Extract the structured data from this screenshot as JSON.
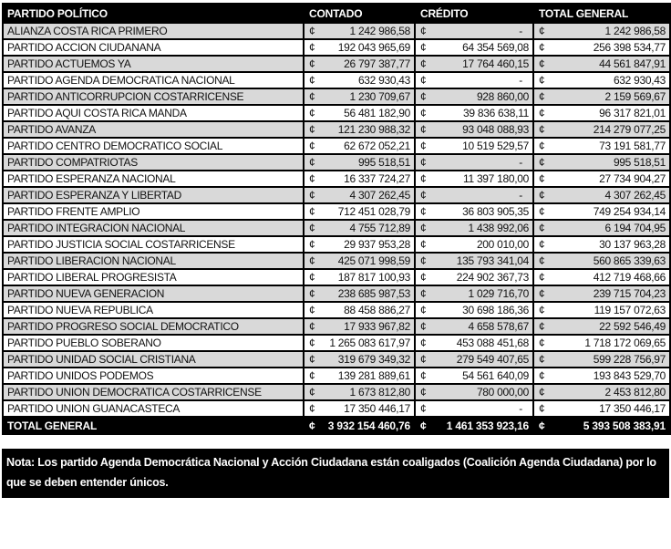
{
  "table": {
    "currency_symbol": "¢",
    "headers": [
      "PARTIDO POLÍTICO",
      "CONTADO",
      "CRÉDITO",
      "TOTAL GENERAL"
    ],
    "rows": [
      {
        "party": "ALIANZA COSTA RICA PRIMERO",
        "contado": "1 242 986,58",
        "credito": "-",
        "total": "1 242 986,58"
      },
      {
        "party": "PARTIDO ACCION CIUDANANA",
        "contado": "192 043 965,69",
        "credito": "64 354 569,08",
        "total": "256 398 534,77"
      },
      {
        "party": "PARTIDO ACTUEMOS YA",
        "contado": "26 797 387,77",
        "credito": "17 764 460,15",
        "total": "44 561 847,91"
      },
      {
        "party": "PARTIDO AGENDA DEMOCRATICA NACIONAL",
        "contado": "632 930,43",
        "credito": "-",
        "total": "632 930,43"
      },
      {
        "party": "PARTIDO ANTICORRUPCION COSTARRICENSE",
        "contado": "1 230 709,67",
        "credito": "928 860,00",
        "total": "2 159 569,67"
      },
      {
        "party": "PARTIDO AQUI COSTA RICA MANDA",
        "contado": "56 481 182,90",
        "credito": "39 836 638,11",
        "total": "96 317 821,01"
      },
      {
        "party": "PARTIDO AVANZA",
        "contado": "121 230 988,32",
        "credito": "93 048 088,93",
        "total": "214 279 077,25"
      },
      {
        "party": "PARTIDO CENTRO DEMOCRATICO SOCIAL",
        "contado": "62 672 052,21",
        "credito": "10 519 529,57",
        "total": "73 191 581,77"
      },
      {
        "party": "PARTIDO COMPATRIOTAS",
        "contado": "995 518,51",
        "credito": "-",
        "total": "995 518,51"
      },
      {
        "party": "PARTIDO ESPERANZA NACIONAL",
        "contado": "16 337 724,27",
        "credito": "11 397 180,00",
        "total": "27 734 904,27"
      },
      {
        "party": "PARTIDO ESPERANZA Y LIBERTAD",
        "contado": "4 307 262,45",
        "credito": "-",
        "total": "4 307 262,45"
      },
      {
        "party": "PARTIDO FRENTE AMPLIO",
        "contado": "712 451 028,79",
        "credito": "36 803 905,35",
        "total": "749 254 934,14"
      },
      {
        "party": "PARTIDO INTEGRACION NACIONAL",
        "contado": "4 755 712,89",
        "credito": "1 438 992,06",
        "total": "6 194 704,95"
      },
      {
        "party": "PARTIDO JUSTICIA SOCIAL COSTARRICENSE",
        "contado": "29 937 953,28",
        "credito": "200 010,00",
        "total": "30 137 963,28"
      },
      {
        "party": "PARTIDO LIBERACION NACIONAL",
        "contado": "425 071 998,59",
        "credito": "135 793 341,04",
        "total": "560 865 339,63"
      },
      {
        "party": "PARTIDO LIBERAL PROGRESISTA",
        "contado": "187 817 100,93",
        "credito": "224 902 367,73",
        "total": "412 719 468,66"
      },
      {
        "party": "PARTIDO NUEVA GENERACION",
        "contado": "238 685 987,53",
        "credito": "1 029 716,70",
        "total": "239 715 704,23"
      },
      {
        "party": "PARTIDO NUEVA REPUBLICA",
        "contado": "88 458 886,27",
        "credito": "30 698 186,36",
        "total": "119 157 072,63"
      },
      {
        "party": "PARTIDO PROGRESO SOCIAL DEMOCRATICO",
        "contado": "17 933 967,82",
        "credito": "4 658 578,67",
        "total": "22 592 546,49"
      },
      {
        "party": "PARTIDO PUEBLO SOBERANO",
        "contado": "1 265 083 617,97",
        "credito": "453 088 451,68",
        "total": "1 718 172 069,65"
      },
      {
        "party": "PARTIDO UNIDAD SOCIAL CRISTIANA",
        "contado": "319 679 349,32",
        "credito": "279 549 407,65",
        "total": "599 228 756,97"
      },
      {
        "party": "PARTIDO UNIDOS PODEMOS",
        "contado": "139 281 889,61",
        "credito": "54 561 640,09",
        "total": "193 843 529,70"
      },
      {
        "party": "PARTIDO UNION DEMOCRATICA COSTARRICENSE",
        "contado": "1 673 812,80",
        "credito": "780 000,00",
        "total": "2 453 812,80"
      },
      {
        "party": "PARTIDO UNION GUANACASTECA",
        "contado": "17 350 446,17",
        "credito": "-",
        "total": "17 350 446,17"
      }
    ],
    "total_row": {
      "label": "TOTAL GENERAL",
      "contado": "3 932 154 460,76",
      "credito": "1 461 353 923,16",
      "total": "5 393 508 383,91"
    }
  },
  "note": {
    "text": "Nota: Los partido Agenda Democrática Nacional y Acción Ciudadana están coaligados (Coalición Agenda Ciudadana) por lo que se deben entender únicos."
  },
  "colors": {
    "header_bg": "#000000",
    "header_text": "#ffffff",
    "row_alt_bg": "#d9d9d9",
    "row_bg": "#ffffff",
    "body_text": "#111111"
  }
}
